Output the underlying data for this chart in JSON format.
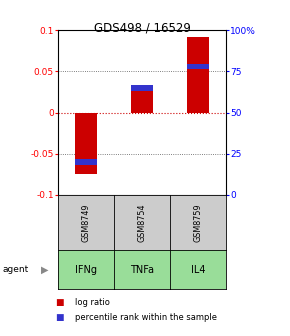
{
  "title": "GDS498 / 16529",
  "samples": [
    "GSM8749",
    "GSM8754",
    "GSM8759"
  ],
  "agents": [
    "IFNg",
    "TNFa",
    "IL4"
  ],
  "log_ratios": [
    -0.075,
    0.028,
    0.092
  ],
  "percentile_ranks": [
    20,
    65,
    78
  ],
  "ylim_left": [
    -0.1,
    0.1
  ],
  "ylim_right": [
    0,
    100
  ],
  "yticks_left": [
    -0.1,
    -0.05,
    0,
    0.05,
    0.1
  ],
  "yticks_right": [
    0,
    25,
    50,
    75,
    100
  ],
  "ytick_labels_left": [
    "-0.1",
    "-0.05",
    "0",
    "0.05",
    "0.1"
  ],
  "ytick_labels_right": [
    "0",
    "25",
    "50",
    "75",
    "100%"
  ],
  "bar_color_red": "#cc0000",
  "bar_color_blue": "#3333cc",
  "agent_color": "#99dd99",
  "sample_bg_color": "#cccccc",
  "zero_line_color": "#cc0000",
  "dotted_line_color": "#555555",
  "legend_red_label": "log ratio",
  "legend_blue_label": "percentile rank within the sample",
  "bar_width": 0.4
}
